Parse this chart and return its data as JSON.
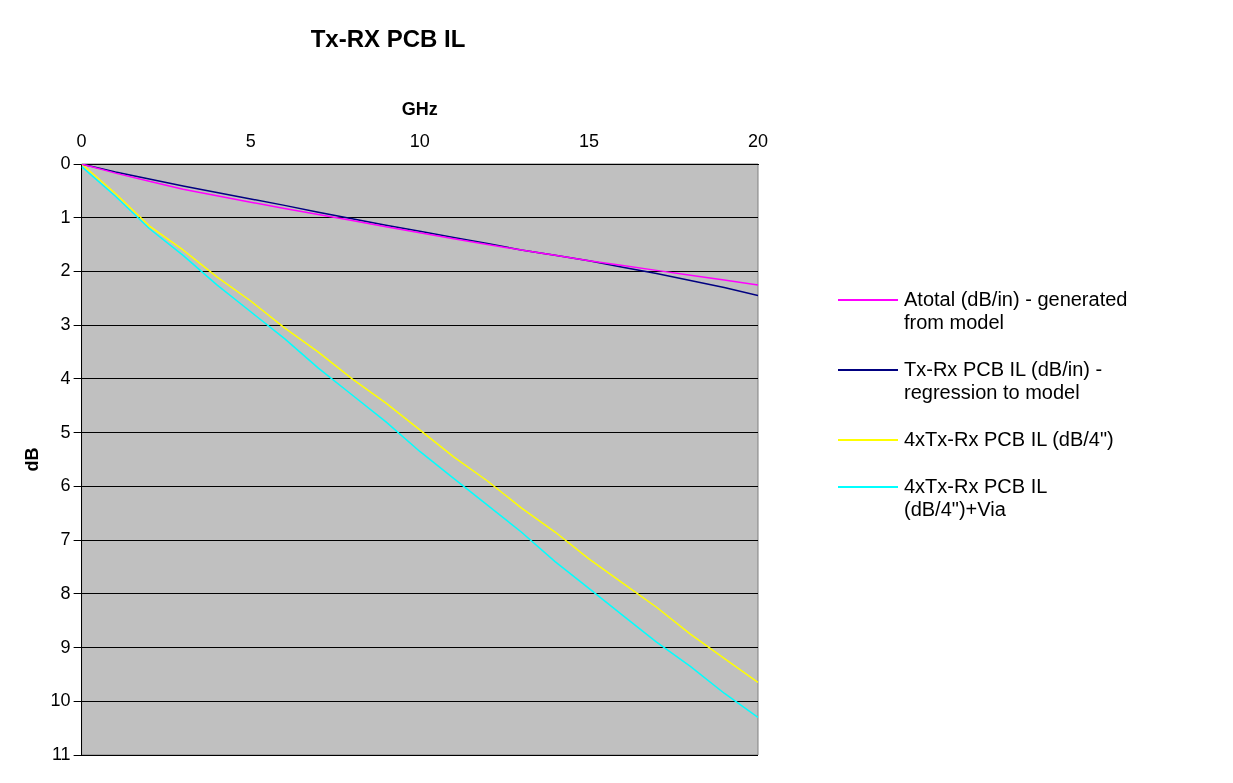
{
  "chart_data": {
    "type": "line",
    "title": "Tx-RX PCB IL",
    "xlabel": "GHz",
    "ylabel": "dB",
    "xlim": [
      0,
      20
    ],
    "xticks": [
      0,
      5,
      10,
      15,
      20
    ],
    "ylim": [
      11,
      0
    ],
    "yticks": [
      0,
      1,
      2,
      3,
      4,
      5,
      6,
      7,
      8,
      9,
      10,
      11
    ],
    "grid": "y",
    "legend": "right",
    "marker": "none",
    "line_style": "solid",
    "x": [
      0,
      1,
      2,
      3,
      4,
      5,
      6,
      7,
      8,
      9,
      10,
      11,
      12,
      13,
      14,
      15,
      16,
      17,
      18,
      19,
      20
    ],
    "series": [
      {
        "name": "Atotal (dB/in) - generated from model",
        "color": "#ff00ff",
        "values": [
          0,
          0.17,
          0.32,
          0.47,
          0.59,
          0.71,
          0.83,
          0.94,
          1.05,
          1.17,
          1.28,
          1.39,
          1.5,
          1.6,
          1.7,
          1.8,
          1.89,
          1.98,
          2.07,
          2.16,
          2.25
        ]
      },
      {
        "name": "Tx-Rx PCB IL (dB/in) -regression to model",
        "color": "#000080",
        "values": [
          0,
          0.15,
          0.28,
          0.41,
          0.53,
          0.65,
          0.77,
          0.9,
          1.02,
          1.14,
          1.25,
          1.37,
          1.48,
          1.6,
          1.7,
          1.8,
          1.92,
          2.04,
          2.17,
          2.3,
          2.45
        ]
      },
      {
        "name": "4xTx-Rx PCB IL (dB/4\")",
        "color": "#ffff00",
        "values": [
          0,
          0.55,
          1.15,
          1.6,
          2.1,
          2.55,
          3.05,
          3.5,
          4,
          4.45,
          4.95,
          5.45,
          5.9,
          6.4,
          6.85,
          7.35,
          7.8,
          8.25,
          8.75,
          9.2,
          9.65
        ]
      },
      {
        "name": "4xTx-Rx PCB IL (dB/4\")+Via",
        "color": "#00ffff",
        "values": [
          0.05,
          0.6,
          1.2,
          1.7,
          2.25,
          2.75,
          3.25,
          3.8,
          4.3,
          4.8,
          5.35,
          5.85,
          6.35,
          6.85,
          7.4,
          7.9,
          8.4,
          8.9,
          9.35,
          9.85,
          10.3
        ]
      }
    ]
  }
}
